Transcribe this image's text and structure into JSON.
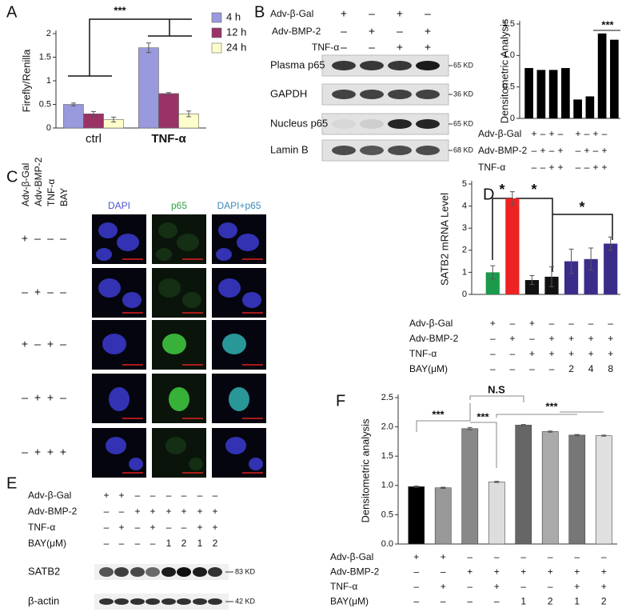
{
  "chart_data": [
    {
      "type": "bar",
      "label": "A",
      "ylabel": "Firefly/Renilla",
      "categories": [
        "ctrl",
        "TNF-α"
      ],
      "series": [
        {
          "name": "4 h",
          "color": "#9999dd",
          "values": [
            0.5,
            1.7
          ],
          "errors": [
            0.03,
            0.1
          ]
        },
        {
          "name": "12 h",
          "color": "#993366",
          "values": [
            0.3,
            0.73
          ],
          "errors": [
            0.05,
            0.02
          ]
        },
        {
          "name": "24 h",
          "color": "#ffffcc",
          "values": [
            0.18,
            0.3
          ],
          "errors": [
            0.05,
            0.06
          ]
        }
      ],
      "ylim": [
        0,
        2
      ],
      "yticks": [
        0,
        0.5,
        1,
        1.5,
        2
      ],
      "annotations": [
        "***"
      ]
    },
    {
      "type": "bar",
      "title": "Densitometric Analysis",
      "categories": [
        null,
        null,
        null,
        null,
        null,
        null,
        null,
        null
      ],
      "values": [
        0.8,
        0.77,
        0.77,
        0.8,
        0.3,
        0.35,
        1.35,
        1.25
      ],
      "color": "#000000",
      "ylim": [
        0,
        1.5
      ],
      "yticks": [
        0,
        0.5,
        {
          "value": 1,
          "label": "1.0"
        },
        1.5
      ],
      "annotations": [
        "***"
      ],
      "conditions": [
        {
          "label": "Adv-β-Gal",
          "marks": [
            "+",
            "–",
            "+",
            "–",
            "+",
            "–",
            "+",
            "–"
          ]
        },
        {
          "label": "Adv-BMP-2",
          "marks": [
            "–",
            "+",
            "–",
            "+",
            "–",
            "+",
            "–",
            "+"
          ]
        },
        {
          "label": "TNF-α",
          "marks": [
            "–",
            "–",
            "+",
            "+",
            "–",
            "–",
            "+",
            "+"
          ]
        }
      ]
    },
    {
      "type": "bar",
      "label": "D",
      "ylabel": "SATB2 mRNA Level",
      "categories": [
        null,
        null,
        null,
        null,
        null,
        null,
        null
      ],
      "values": [
        1.0,
        4.35,
        0.65,
        0.8,
        1.5,
        1.6,
        2.3
      ],
      "errors": [
        0.3,
        0.3,
        0.2,
        0.45,
        0.55,
        0.5,
        0.3
      ],
      "colors": [
        "#1a9a4a",
        "#ee2222",
        "#111111",
        "#111111",
        "#3a2d8a",
        "#3a2d8a",
        "#3a2d8a"
      ],
      "ylim": [
        0,
        5
      ],
      "yticks": [
        0,
        1,
        2,
        3,
        4,
        5
      ],
      "annotations": [
        "*",
        "*",
        "*"
      ],
      "conditions": [
        {
          "label": "Adv-β-Gal",
          "marks": [
            "+",
            "–",
            "+",
            "–",
            "–",
            "–",
            "–"
          ]
        },
        {
          "label": "Adv-BMP-2",
          "marks": [
            "–",
            "+",
            "–",
            "+",
            "+",
            "+",
            "+"
          ]
        },
        {
          "label": "TNF-α",
          "marks": [
            "–",
            "–",
            "+",
            "+",
            "+",
            "+",
            "+"
          ]
        },
        {
          "label": "BAY(μM)",
          "marks": [
            "–",
            "–",
            "–",
            "–",
            "2",
            "4",
            "8"
          ]
        }
      ]
    },
    {
      "type": "bar",
      "label": "F",
      "ylabel": "Densitometric analysis",
      "categories": [
        null,
        null,
        null,
        null,
        null,
        null,
        null,
        null
      ],
      "values": [
        0.98,
        0.96,
        1.97,
        1.06,
        2.03,
        1.92,
        1.86,
        1.85
      ],
      "errors": [
        0.01,
        0.01,
        0.02,
        0.01,
        0.01,
        0.01,
        0.01,
        0.01
      ],
      "colors": [
        "#000000",
        "#999999",
        "#888888",
        "#dddddd",
        "#666666",
        "#aaaaaa",
        "#777777",
        "#e0e0e0"
      ],
      "ylim": [
        0,
        2.5
      ],
      "yticks": [
        {
          "value": 0,
          "label": "0.0"
        },
        0.5,
        {
          "value": 1,
          "label": "1.0"
        },
        1.5,
        {
          "value": 2,
          "label": "2.0"
        },
        2.5
      ],
      "annotations": [
        "***",
        "***",
        "N.S",
        "***"
      ],
      "conditions": [
        {
          "label": "Adv-β-Gal",
          "marks": [
            "+",
            "+",
            "–",
            "–",
            "–",
            "–",
            "–",
            "–"
          ]
        },
        {
          "label": "Adv-BMP-2",
          "marks": [
            "–",
            "–",
            "+",
            "+",
            "+",
            "+",
            "+",
            "+"
          ]
        },
        {
          "label": "TNF-α",
          "marks": [
            "–",
            "+",
            "–",
            "+",
            "–",
            "–",
            "+",
            "+"
          ]
        },
        {
          "label": "BAY(μM)",
          "marks": [
            "–",
            "–",
            "–",
            "–",
            "1",
            "2",
            "1",
            "2"
          ]
        }
      ]
    }
  ],
  "blot_b": {
    "label": "B",
    "conditions": [
      {
        "label": "Adv-β-Gal",
        "marks": [
          "+",
          "–",
          "+",
          "–"
        ]
      },
      {
        "label": "Adv-BMP-2",
        "marks": [
          "–",
          "+",
          "–",
          "+"
        ]
      },
      {
        "label": "TNF-α",
        "marks": [
          "–",
          "–",
          "+",
          "+"
        ]
      }
    ],
    "rows": [
      {
        "name": "Plasma p65",
        "size": "65 KD"
      },
      {
        "name": "GAPDH",
        "size": "36 KD"
      },
      {
        "name": "Nucleus p65",
        "size": "65 KD"
      },
      {
        "name": "Lamin B",
        "size": "68 KD"
      }
    ]
  },
  "panel_c": {
    "label": "C",
    "columns": [
      "Adv-β-Gal",
      "Adv-BMP-2",
      "TNF-α",
      "BAY"
    ],
    "images": [
      "DAPI",
      "p65",
      "DAPI+p65"
    ],
    "rows": [
      [
        "+",
        "–",
        "–",
        "–"
      ],
      [
        "–",
        "+",
        "–",
        "–"
      ],
      [
        "+",
        "–",
        "+",
        "–"
      ],
      [
        "–",
        "+",
        "+",
        "–"
      ],
      [
        "–",
        "+",
        "+",
        "+"
      ]
    ]
  },
  "blot_e": {
    "label": "E",
    "conditions": [
      {
        "label": "Adv-β-Gal",
        "marks": [
          "+",
          "+",
          "–",
          "–",
          "–",
          "–",
          "–",
          "–"
        ]
      },
      {
        "label": "Adv-BMP-2",
        "marks": [
          "–",
          "–",
          "+",
          "+",
          "+",
          "+",
          "+",
          "+"
        ]
      },
      {
        "label": "TNF-α",
        "marks": [
          "–",
          "+",
          "–",
          "+",
          "–",
          "–",
          "+",
          "+"
        ]
      },
      {
        "label": "BAY(μM)",
        "marks": [
          "–",
          "–",
          "–",
          "–",
          "1",
          "2",
          "1",
          "2"
        ]
      }
    ],
    "rows": [
      {
        "name": "SATB2",
        "size": "83 KD"
      },
      {
        "name": "β-actin",
        "size": "42 KD"
      }
    ]
  }
}
